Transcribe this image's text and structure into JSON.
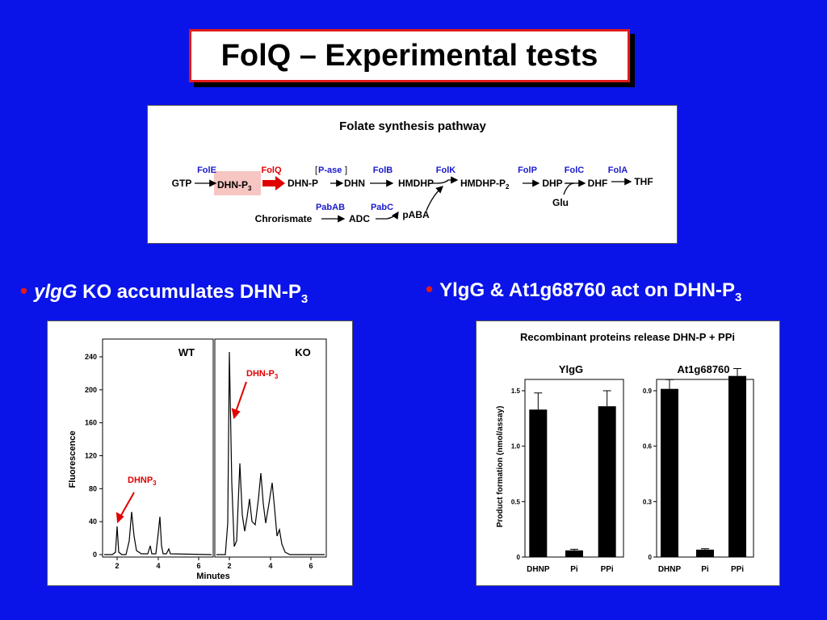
{
  "title": "FolQ – Experimental tests",
  "pathway": {
    "heading": "Folate synthesis pathway",
    "enzymes": [
      "FolE",
      "FolQ",
      "[",
      "P-ase",
      "]",
      "FolB",
      "FolK",
      "FolP",
      "FolC",
      "FolA",
      "PabAB",
      "PabC"
    ],
    "compounds": [
      "GTP",
      "DHN-P",
      "3",
      "DHN-P",
      "DHN",
      "HMDHP",
      "HMDHP-P",
      "2",
      "DHP",
      "DHF",
      "THF",
      "Glu",
      "Chrorismate",
      "ADC",
      "pABA"
    ],
    "colors": {
      "enzyme": "#1a1acc",
      "highlight": "#f7c6c2",
      "arrow": "#e00000"
    }
  },
  "bullets": {
    "left": {
      "italic": "ylgG",
      "text": " KO accumulates DHN-P",
      "sub": "3"
    },
    "right": {
      "text": "YlgG & At1g68760 act on DHN-P",
      "sub": "3"
    }
  },
  "chromatogram": {
    "ylabel": "Fluorescence",
    "xlabel": "Minutes",
    "yticks": [
      "0",
      "40",
      "80",
      "120",
      "160",
      "200",
      "240"
    ],
    "xticks_wt": [
      "2",
      "4",
      "6"
    ],
    "xticks_ko": [
      "2",
      "4",
      "6"
    ],
    "panel_wt": "WT",
    "panel_ko": "KO",
    "annotation_wt": {
      "text": "DHNP",
      "sub": "3"
    },
    "annotation_ko": {
      "text": "DHN-P",
      "sub": "3"
    }
  },
  "chart_data": [
    {
      "type": "bar",
      "title": "YlgG",
      "categories": [
        "DHNP",
        "Pi",
        "PPi"
      ],
      "values": [
        1.33,
        0.06,
        1.36
      ],
      "errors": [
        0.15,
        0.01,
        0.14
      ],
      "ylabel": "Product formation (nmol/assay)",
      "yticks": [
        "0",
        "0.5",
        "1.0",
        "1.5"
      ],
      "ylim": [
        0,
        1.5
      ]
    },
    {
      "type": "bar",
      "title": "At1g68760",
      "categories": [
        "DHNP",
        "Pi",
        "PPi"
      ],
      "values": [
        0.91,
        0.04,
        0.98
      ],
      "errors": [
        0.05,
        0.005,
        0.04
      ],
      "yticks": [
        "0",
        "0.3",
        "0.6",
        "0.9"
      ],
      "ylim": [
        0,
        1.0
      ]
    }
  ],
  "recombinant": {
    "heading": "Recombinant proteins release DHN-P + PPi"
  }
}
